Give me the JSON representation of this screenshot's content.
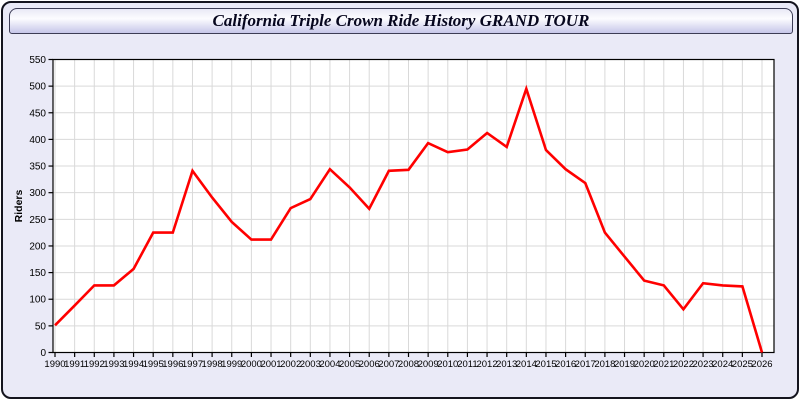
{
  "window": {
    "title": "California Triple Crown Ride History GRAND TOUR"
  },
  "colors": {
    "line": "#ff0000",
    "grid": "#d9d9d9",
    "plot_bg": "#ffffff",
    "panel_bg": "#eaeaf7",
    "frame": "#000000",
    "text": "#000000",
    "title_text": "#06061e"
  },
  "chart_data": {
    "type": "line",
    "title": "California Triple Crown Ride History GRAND TOUR",
    "xlabel": "",
    "ylabel": "Riders",
    "x": [
      1990,
      1991,
      1992,
      1993,
      1994,
      1995,
      1996,
      1997,
      1998,
      1999,
      2000,
      2001,
      2002,
      2003,
      2004,
      2005,
      2006,
      2007,
      2008,
      2009,
      2010,
      2011,
      2012,
      2013,
      2014,
      2015,
      2016,
      2017,
      2018,
      2019,
      2020,
      2021,
      2022,
      2023,
      2024,
      2025,
      2026
    ],
    "series": [
      {
        "name": "Riders",
        "color": "#ff0000",
        "values": [
          51,
          88,
          126,
          126,
          157,
          225,
          225,
          341,
          291,
          245,
          212,
          212,
          271,
          288,
          344,
          310,
          270,
          341,
          343,
          393,
          376,
          381,
          412,
          386,
          495,
          380,
          344,
          318,
          225,
          180,
          135,
          126,
          81,
          130,
          126,
          124,
          0
        ]
      }
    ],
    "ylim": [
      0,
      550
    ],
    "ytick_step": 50,
    "xtick_every": 1,
    "grid": true,
    "legend_position": "none"
  }
}
